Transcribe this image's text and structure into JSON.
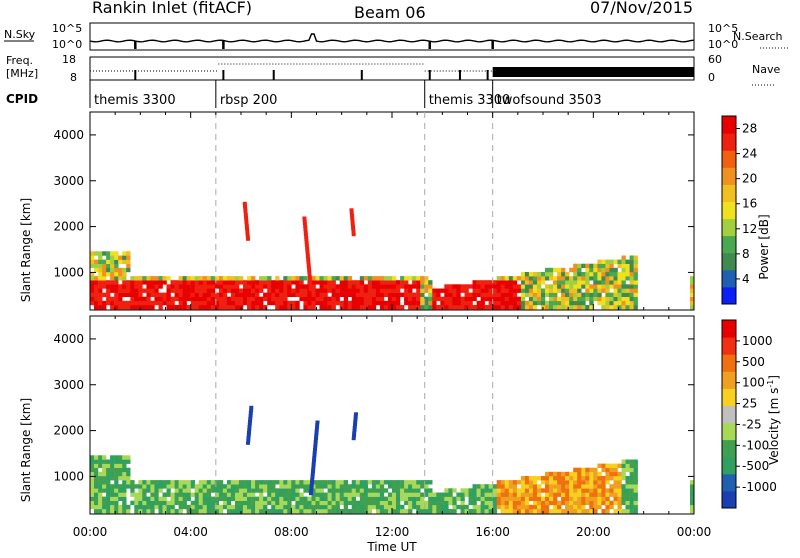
{
  "header": {
    "title": "Rankin Inlet (fitACF)",
    "beam": "Beam 06",
    "date": "07/Nov/2015"
  },
  "status_panels": {
    "nsky_label": "N.Sky",
    "nsearch_label": "N.Search",
    "freq_label_line1": "Freq.",
    "freq_label_line2": "[MHz]",
    "nave_label": "Nave",
    "cpid_label": "CPID",
    "noise_left_ticks": [
      "10^5",
      "10^0"
    ],
    "noise_right_ticks": [
      "10^5",
      "10^0"
    ],
    "freq_left_ticks": [
      "18",
      "8"
    ],
    "freq_right_ticks": [
      "60",
      "0"
    ],
    "cpid_segments": [
      {
        "label": "themis 3300",
        "start_hour": 0
      },
      {
        "label": "rbsp 200",
        "start_hour": 5.0
      },
      {
        "label": "themis 3300",
        "start_hour": 13.3
      },
      {
        "label": "twofsound 3503",
        "start_hour": 16.0
      }
    ]
  },
  "chart_data": [
    {
      "type": "heatmap",
      "title": "",
      "xlabel": "",
      "ylabel": "Slant Range [km]",
      "x_range_hours": [
        0,
        24
      ],
      "ylim": [
        180,
        4500
      ],
      "y_ticks": [
        1000,
        2000,
        3000,
        4000
      ],
      "colorbar_label": "Power [dB]",
      "colorbar_ticks": [
        4,
        8,
        12,
        16,
        20,
        24,
        28
      ],
      "colorbar_range": [
        0,
        30
      ],
      "colorbar_colors": [
        "#0b20f5",
        "#2060b0",
        "#3f8a50",
        "#4aa850",
        "#a0d040",
        "#f0e020",
        "#f0c020",
        "#f09020",
        "#f06010",
        "#f02010",
        "#e80000"
      ],
      "dashed_vertical_hours": [
        5.0,
        13.3,
        16.0
      ]
    },
    {
      "type": "heatmap",
      "title": "",
      "xlabel": "Time UT",
      "ylabel": "Slant Range [km]",
      "x_range_hours": [
        0,
        24
      ],
      "ylim": [
        180,
        4500
      ],
      "y_ticks": [
        1000,
        2000,
        3000,
        4000
      ],
      "colorbar_label": "Velocity [m s^-1]",
      "colorbar_ticks": [
        "1000",
        "500",
        "100",
        "25",
        "-25",
        "-100",
        "-500",
        "-1000"
      ],
      "colorbar_colors": [
        "#1a3fb0",
        "#2060b0",
        "#30a060",
        "#3fa050",
        "#a8d858",
        "#c0c0c0",
        "#f8d020",
        "#f0a020",
        "#f07010",
        "#f03010",
        "#e80000"
      ],
      "dashed_vertical_hours": [
        5.0,
        13.3,
        16.0
      ],
      "x_tick_labels": [
        "00:00",
        "04:00",
        "08:00",
        "12:00",
        "16:00",
        "20:00",
        "00:00"
      ]
    }
  ],
  "colorbars": {
    "power_label": "Power",
    "power_unit": "[dB]",
    "velocity_label": "Velocity",
    "velocity_unit_open": "[m s",
    "velocity_unit_exp": "-1",
    "velocity_unit_close": "]"
  }
}
